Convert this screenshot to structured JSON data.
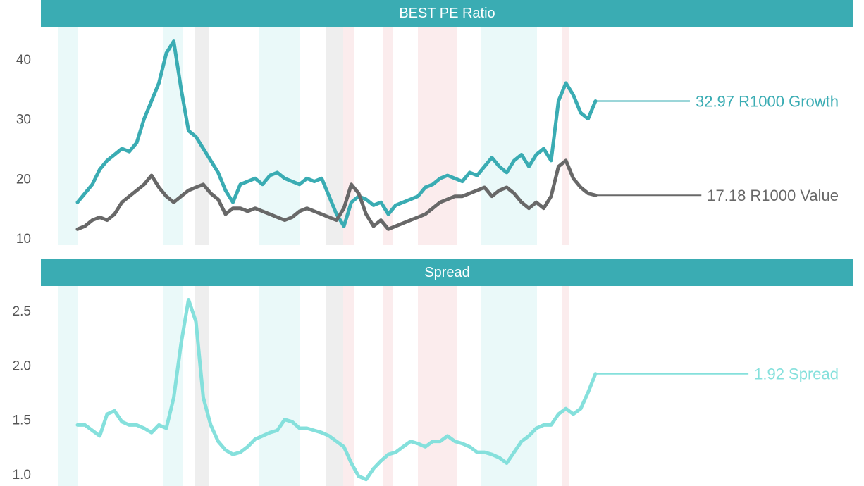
{
  "chart_data": [
    {
      "type": "line",
      "title": "BEST PE Ratio",
      "ylim": [
        10,
        43
      ],
      "yticks": [
        10,
        20,
        30,
        40
      ],
      "series": [
        {
          "name": "R1000 Growth",
          "color": "#3aacb3",
          "end_label": "32.97 R1000 Growth",
          "values": [
            16.0,
            17.5,
            19.0,
            21.5,
            23.0,
            24.0,
            25.0,
            24.5,
            26.0,
            30.0,
            33.0,
            36.0,
            41.0,
            43.0,
            35.0,
            28.0,
            27.0,
            25.0,
            23.0,
            21.0,
            18.0,
            16.0,
            19.0,
            19.5,
            20.0,
            19.0,
            20.5,
            21.0,
            20.0,
            19.5,
            19.0,
            20.0,
            19.5,
            20.0,
            17.0,
            14.0,
            12.0,
            16.0,
            17.0,
            16.5,
            15.5,
            16.0,
            14.0,
            15.5,
            16.0,
            16.5,
            17.0,
            18.5,
            19.0,
            20.0,
            20.5,
            20.0,
            19.5,
            21.0,
            20.5,
            22.0,
            23.5,
            22.0,
            21.0,
            23.0,
            24.0,
            22.0,
            24.0,
            25.0,
            23.0,
            33.0,
            36.0,
            34.0,
            31.0,
            30.0,
            32.97
          ]
        },
        {
          "name": "R1000 Value",
          "color": "#686868",
          "end_label": "17.18 R1000 Value",
          "values": [
            11.5,
            12.0,
            13.0,
            13.5,
            13.0,
            14.0,
            16.0,
            17.0,
            18.0,
            19.0,
            20.5,
            18.5,
            17.0,
            16.0,
            17.0,
            18.0,
            18.5,
            19.0,
            17.5,
            16.5,
            14.0,
            15.0,
            15.0,
            14.5,
            15.0,
            14.5,
            14.0,
            13.5,
            13.0,
            13.5,
            14.5,
            15.0,
            14.5,
            14.0,
            13.5,
            13.0,
            15.0,
            19.0,
            17.5,
            14.0,
            12.0,
            13.0,
            11.5,
            12.0,
            12.5,
            13.0,
            13.5,
            14.0,
            15.0,
            16.0,
            16.5,
            17.0,
            17.0,
            17.5,
            18.0,
            18.5,
            17.0,
            18.0,
            18.5,
            17.5,
            16.0,
            15.0,
            16.0,
            15.0,
            17.0,
            22.0,
            23.0,
            20.0,
            18.5,
            17.5,
            17.18
          ]
        }
      ]
    },
    {
      "type": "line",
      "title": "Spread",
      "ylim": [
        0.95,
        2.7
      ],
      "yticks": [
        "1.0",
        "1.5",
        "2.0",
        "2.5"
      ],
      "series": [
        {
          "name": "Spread",
          "color": "#85e0dc",
          "end_label": "1.92 Spread",
          "values": [
            1.45,
            1.45,
            1.4,
            1.35,
            1.55,
            1.58,
            1.48,
            1.45,
            1.45,
            1.42,
            1.38,
            1.45,
            1.42,
            1.7,
            2.2,
            2.6,
            2.4,
            1.7,
            1.45,
            1.3,
            1.22,
            1.18,
            1.2,
            1.25,
            1.32,
            1.35,
            1.38,
            1.4,
            1.5,
            1.48,
            1.42,
            1.42,
            1.4,
            1.38,
            1.35,
            1.3,
            1.25,
            1.1,
            0.98,
            0.95,
            1.05,
            1.12,
            1.18,
            1.2,
            1.25,
            1.3,
            1.28,
            1.25,
            1.3,
            1.3,
            1.35,
            1.3,
            1.28,
            1.25,
            1.2,
            1.2,
            1.18,
            1.15,
            1.1,
            1.2,
            1.3,
            1.35,
            1.42,
            1.45,
            1.45,
            1.55,
            1.6,
            1.55,
            1.6,
            1.75,
            1.92
          ]
        }
      ]
    }
  ],
  "bands": {
    "teal": "#eaf9f9",
    "grey": "#eeeeee",
    "pink": "#fbeced"
  }
}
